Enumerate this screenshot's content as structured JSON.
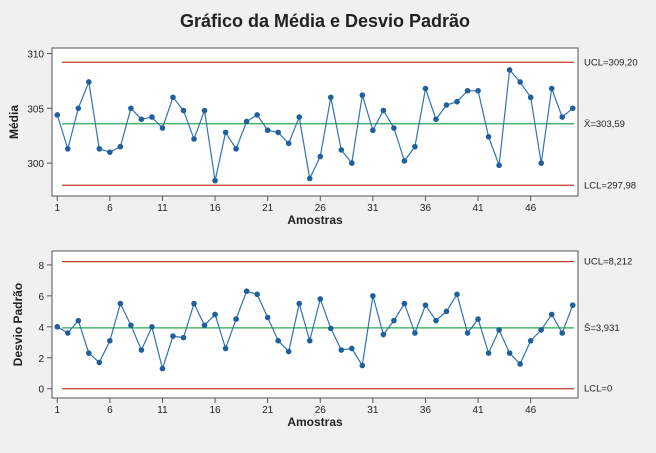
{
  "title": "Gráfico da Média e Desvio Padrão",
  "colors": {
    "background": "#f0f0f0",
    "plot_bg": "#ffffff",
    "series": "#2e75b6",
    "point": "#1f5f9e",
    "limit": "#c0392b",
    "center": "#2aa84a",
    "axis": "#555555"
  },
  "chart_data": [
    {
      "type": "line",
      "name": "xbar",
      "xlabel": "Amostras",
      "ylabel": "Média",
      "xlim": [
        0.5,
        50.5
      ],
      "ylim": [
        297.0,
        310.5
      ],
      "xticks": [
        1,
        6,
        11,
        16,
        21,
        26,
        31,
        36,
        41,
        46
      ],
      "xtick_labels": [
        "1",
        "6",
        "11",
        "16",
        "21",
        "26",
        "31",
        "36",
        "41",
        "46"
      ],
      "yticks": [
        300,
        305,
        310
      ],
      "ytick_labels": [
        "300",
        "305",
        "310"
      ],
      "grid": false,
      "limits": [
        {
          "label": "UCL=309,20",
          "value": 309.2,
          "kind": "limit"
        },
        {
          "label": "X̄=303,59",
          "value": 303.59,
          "kind": "center"
        },
        {
          "label": "LCL=297,98",
          "value": 297.98,
          "kind": "limit"
        }
      ],
      "x": [
        1,
        2,
        3,
        4,
        5,
        6,
        7,
        8,
        9,
        10,
        11,
        12,
        13,
        14,
        15,
        16,
        17,
        18,
        19,
        20,
        21,
        22,
        23,
        24,
        25,
        26,
        27,
        28,
        29,
        30,
        31,
        32,
        33,
        34,
        35,
        36,
        37,
        38,
        39,
        40,
        41,
        42,
        43,
        44,
        45,
        46,
        47,
        48,
        49,
        50
      ],
      "values": [
        304.4,
        301.3,
        305.0,
        307.4,
        301.3,
        301.0,
        301.5,
        305.0,
        304.0,
        304.2,
        303.2,
        306.0,
        304.8,
        302.2,
        304.8,
        298.4,
        302.8,
        301.3,
        303.8,
        304.4,
        303.0,
        302.8,
        301.8,
        304.2,
        298.6,
        300.6,
        306.0,
        301.2,
        300.0,
        306.2,
        303.0,
        304.8,
        303.2,
        300.2,
        301.5,
        306.8,
        304.0,
        305.3,
        305.6,
        306.6,
        306.6,
        302.4,
        299.8,
        308.5,
        307.4,
        306.0,
        300.0,
        306.8,
        304.2,
        305.0
      ]
    },
    {
      "type": "line",
      "name": "s",
      "xlabel": "Amostras",
      "ylabel": "Desvio Padrão",
      "xlim": [
        0.5,
        50.5
      ],
      "ylim": [
        -0.6,
        8.9
      ],
      "xticks": [
        1,
        6,
        11,
        16,
        21,
        26,
        31,
        36,
        41,
        46
      ],
      "xtick_labels": [
        "1",
        "6",
        "11",
        "16",
        "21",
        "26",
        "31",
        "36",
        "41",
        "46"
      ],
      "yticks": [
        0,
        2,
        4,
        6,
        8
      ],
      "ytick_labels": [
        "0",
        "2",
        "4",
        "6",
        "8"
      ],
      "grid": false,
      "limits": [
        {
          "label": "UCL=8,212",
          "value": 8.212,
          "kind": "limit"
        },
        {
          "label": "S̄=3,931",
          "value": 3.931,
          "kind": "center"
        },
        {
          "label": "LCL=0",
          "value": 0,
          "kind": "limit"
        }
      ],
      "x": [
        1,
        2,
        3,
        4,
        5,
        6,
        7,
        8,
        9,
        10,
        11,
        12,
        13,
        14,
        15,
        16,
        17,
        18,
        19,
        20,
        21,
        22,
        23,
        24,
        25,
        26,
        27,
        28,
        29,
        30,
        31,
        32,
        33,
        34,
        35,
        36,
        37,
        38,
        39,
        40,
        41,
        42,
        43,
        44,
        45,
        46,
        47,
        48,
        49,
        50
      ],
      "values": [
        4.0,
        3.6,
        4.4,
        2.3,
        1.7,
        3.1,
        5.5,
        4.1,
        2.5,
        4.0,
        1.3,
        3.4,
        3.3,
        5.5,
        4.1,
        4.8,
        2.6,
        4.5,
        6.3,
        6.1,
        4.6,
        3.1,
        2.4,
        5.5,
        3.1,
        5.8,
        3.9,
        2.5,
        2.6,
        1.5,
        6.0,
        3.5,
        4.4,
        5.5,
        3.6,
        5.4,
        4.4,
        5.0,
        6.1,
        3.6,
        4.5,
        2.3,
        3.8,
        2.3,
        1.6,
        3.1,
        3.8,
        4.8,
        3.6,
        5.4
      ]
    }
  ]
}
